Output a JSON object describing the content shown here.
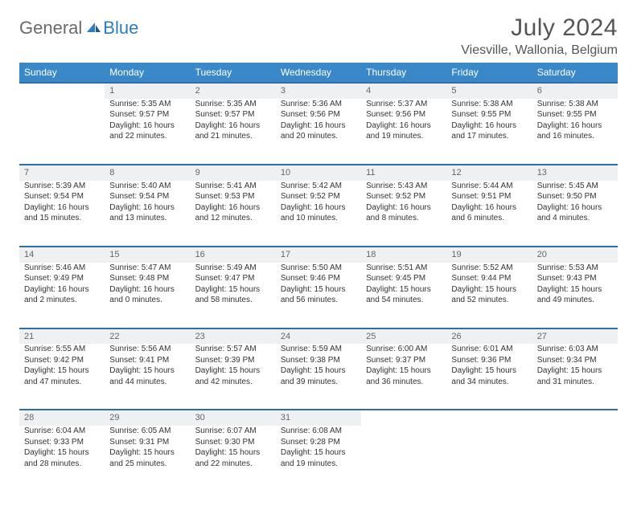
{
  "logo": {
    "general": "General",
    "blue": "Blue"
  },
  "title": "July 2024",
  "location": "Viesville, Wallonia, Belgium",
  "colors": {
    "header_bg": "#3b88c8",
    "header_border": "#2d6fa8",
    "daynum_bg": "#eef0f2",
    "text": "#333333",
    "muted": "#555555",
    "logo_blue": "#2d7cc0"
  },
  "weekdays": [
    "Sunday",
    "Monday",
    "Tuesday",
    "Wednesday",
    "Thursday",
    "Friday",
    "Saturday"
  ],
  "weeks": [
    {
      "nums": [
        "",
        "1",
        "2",
        "3",
        "4",
        "5",
        "6"
      ],
      "cells": [
        null,
        {
          "sunrise": "Sunrise: 5:35 AM",
          "sunset": "Sunset: 9:57 PM",
          "day1": "Daylight: 16 hours",
          "day2": "and 22 minutes."
        },
        {
          "sunrise": "Sunrise: 5:35 AM",
          "sunset": "Sunset: 9:57 PM",
          "day1": "Daylight: 16 hours",
          "day2": "and 21 minutes."
        },
        {
          "sunrise": "Sunrise: 5:36 AM",
          "sunset": "Sunset: 9:56 PM",
          "day1": "Daylight: 16 hours",
          "day2": "and 20 minutes."
        },
        {
          "sunrise": "Sunrise: 5:37 AM",
          "sunset": "Sunset: 9:56 PM",
          "day1": "Daylight: 16 hours",
          "day2": "and 19 minutes."
        },
        {
          "sunrise": "Sunrise: 5:38 AM",
          "sunset": "Sunset: 9:55 PM",
          "day1": "Daylight: 16 hours",
          "day2": "and 17 minutes."
        },
        {
          "sunrise": "Sunrise: 5:38 AM",
          "sunset": "Sunset: 9:55 PM",
          "day1": "Daylight: 16 hours",
          "day2": "and 16 minutes."
        }
      ]
    },
    {
      "nums": [
        "7",
        "8",
        "9",
        "10",
        "11",
        "12",
        "13"
      ],
      "cells": [
        {
          "sunrise": "Sunrise: 5:39 AM",
          "sunset": "Sunset: 9:54 PM",
          "day1": "Daylight: 16 hours",
          "day2": "and 15 minutes."
        },
        {
          "sunrise": "Sunrise: 5:40 AM",
          "sunset": "Sunset: 9:54 PM",
          "day1": "Daylight: 16 hours",
          "day2": "and 13 minutes."
        },
        {
          "sunrise": "Sunrise: 5:41 AM",
          "sunset": "Sunset: 9:53 PM",
          "day1": "Daylight: 16 hours",
          "day2": "and 12 minutes."
        },
        {
          "sunrise": "Sunrise: 5:42 AM",
          "sunset": "Sunset: 9:52 PM",
          "day1": "Daylight: 16 hours",
          "day2": "and 10 minutes."
        },
        {
          "sunrise": "Sunrise: 5:43 AM",
          "sunset": "Sunset: 9:52 PM",
          "day1": "Daylight: 16 hours",
          "day2": "and 8 minutes."
        },
        {
          "sunrise": "Sunrise: 5:44 AM",
          "sunset": "Sunset: 9:51 PM",
          "day1": "Daylight: 16 hours",
          "day2": "and 6 minutes."
        },
        {
          "sunrise": "Sunrise: 5:45 AM",
          "sunset": "Sunset: 9:50 PM",
          "day1": "Daylight: 16 hours",
          "day2": "and 4 minutes."
        }
      ]
    },
    {
      "nums": [
        "14",
        "15",
        "16",
        "17",
        "18",
        "19",
        "20"
      ],
      "cells": [
        {
          "sunrise": "Sunrise: 5:46 AM",
          "sunset": "Sunset: 9:49 PM",
          "day1": "Daylight: 16 hours",
          "day2": "and 2 minutes."
        },
        {
          "sunrise": "Sunrise: 5:47 AM",
          "sunset": "Sunset: 9:48 PM",
          "day1": "Daylight: 16 hours",
          "day2": "and 0 minutes."
        },
        {
          "sunrise": "Sunrise: 5:49 AM",
          "sunset": "Sunset: 9:47 PM",
          "day1": "Daylight: 15 hours",
          "day2": "and 58 minutes."
        },
        {
          "sunrise": "Sunrise: 5:50 AM",
          "sunset": "Sunset: 9:46 PM",
          "day1": "Daylight: 15 hours",
          "day2": "and 56 minutes."
        },
        {
          "sunrise": "Sunrise: 5:51 AM",
          "sunset": "Sunset: 9:45 PM",
          "day1": "Daylight: 15 hours",
          "day2": "and 54 minutes."
        },
        {
          "sunrise": "Sunrise: 5:52 AM",
          "sunset": "Sunset: 9:44 PM",
          "day1": "Daylight: 15 hours",
          "day2": "and 52 minutes."
        },
        {
          "sunrise": "Sunrise: 5:53 AM",
          "sunset": "Sunset: 9:43 PM",
          "day1": "Daylight: 15 hours",
          "day2": "and 49 minutes."
        }
      ]
    },
    {
      "nums": [
        "21",
        "22",
        "23",
        "24",
        "25",
        "26",
        "27"
      ],
      "cells": [
        {
          "sunrise": "Sunrise: 5:55 AM",
          "sunset": "Sunset: 9:42 PM",
          "day1": "Daylight: 15 hours",
          "day2": "and 47 minutes."
        },
        {
          "sunrise": "Sunrise: 5:56 AM",
          "sunset": "Sunset: 9:41 PM",
          "day1": "Daylight: 15 hours",
          "day2": "and 44 minutes."
        },
        {
          "sunrise": "Sunrise: 5:57 AM",
          "sunset": "Sunset: 9:39 PM",
          "day1": "Daylight: 15 hours",
          "day2": "and 42 minutes."
        },
        {
          "sunrise": "Sunrise: 5:59 AM",
          "sunset": "Sunset: 9:38 PM",
          "day1": "Daylight: 15 hours",
          "day2": "and 39 minutes."
        },
        {
          "sunrise": "Sunrise: 6:00 AM",
          "sunset": "Sunset: 9:37 PM",
          "day1": "Daylight: 15 hours",
          "day2": "and 36 minutes."
        },
        {
          "sunrise": "Sunrise: 6:01 AM",
          "sunset": "Sunset: 9:36 PM",
          "day1": "Daylight: 15 hours",
          "day2": "and 34 minutes."
        },
        {
          "sunrise": "Sunrise: 6:03 AM",
          "sunset": "Sunset: 9:34 PM",
          "day1": "Daylight: 15 hours",
          "day2": "and 31 minutes."
        }
      ]
    },
    {
      "nums": [
        "28",
        "29",
        "30",
        "31",
        "",
        "",
        ""
      ],
      "cells": [
        {
          "sunrise": "Sunrise: 6:04 AM",
          "sunset": "Sunset: 9:33 PM",
          "day1": "Daylight: 15 hours",
          "day2": "and 28 minutes."
        },
        {
          "sunrise": "Sunrise: 6:05 AM",
          "sunset": "Sunset: 9:31 PM",
          "day1": "Daylight: 15 hours",
          "day2": "and 25 minutes."
        },
        {
          "sunrise": "Sunrise: 6:07 AM",
          "sunset": "Sunset: 9:30 PM",
          "day1": "Daylight: 15 hours",
          "day2": "and 22 minutes."
        },
        {
          "sunrise": "Sunrise: 6:08 AM",
          "sunset": "Sunset: 9:28 PM",
          "day1": "Daylight: 15 hours",
          "day2": "and 19 minutes."
        },
        null,
        null,
        null
      ]
    }
  ]
}
